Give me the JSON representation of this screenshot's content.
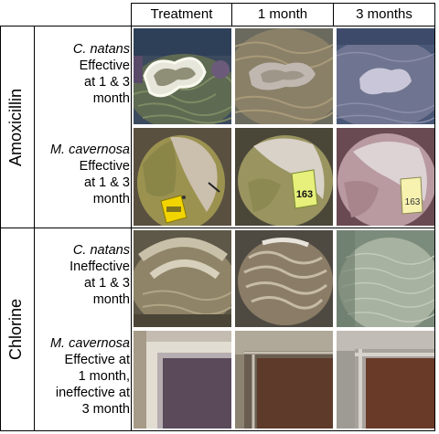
{
  "columns": [
    "Treatment",
    "1 month",
    "3 months"
  ],
  "groups": [
    {
      "label": "Amoxicillin",
      "rows": [
        {
          "species": "C. natans",
          "outcome": "Effective\nat 1 & 3\nmonth"
        },
        {
          "species": "M. cavernosa",
          "outcome": "Effective\nat 1 & 3\nmonth"
        }
      ]
    },
    {
      "label": "Chlorine",
      "rows": [
        {
          "species": "C. natans",
          "outcome": "Ineffective\nat 1 & 3\nmonth"
        },
        {
          "species": "M. cavernosa",
          "outcome": "Effective at\n1 month,\nineffective at\n3 month"
        }
      ]
    }
  ],
  "tags": {
    "tag_1_month": "163",
    "tag_3_months": "163"
  },
  "colors": {
    "grid": "#000000",
    "background": "#ffffff"
  }
}
